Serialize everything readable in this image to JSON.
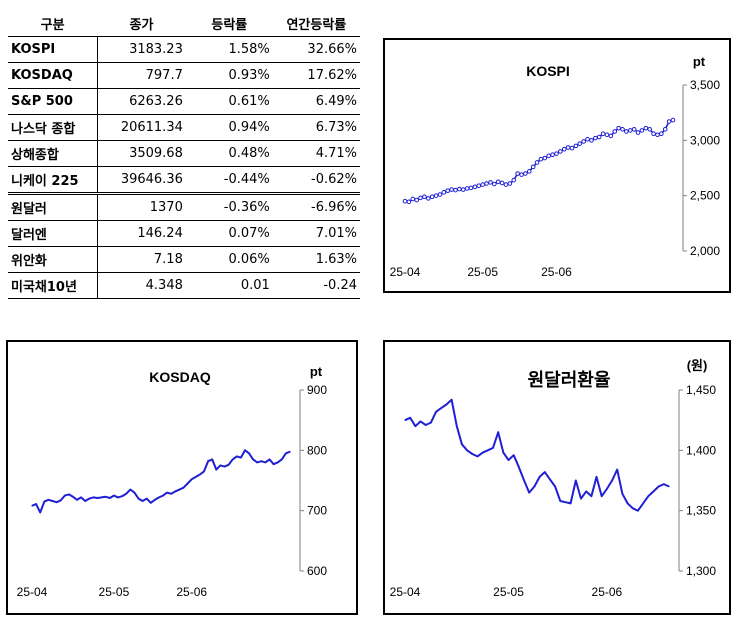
{
  "table": {
    "headers": [
      "구분",
      "종가",
      "등락률",
      "연간등락률"
    ],
    "rows": [
      {
        "name": "KOSPI",
        "close": "3183.23",
        "change": "1.58%",
        "ytd": "32.66%"
      },
      {
        "name": "KOSDAQ",
        "close": "797.7",
        "change": "0.93%",
        "ytd": "17.62%"
      },
      {
        "name": "S&P 500",
        "close": "6263.26",
        "change": "0.61%",
        "ytd": "6.49%"
      },
      {
        "name": "나스닥 종합",
        "close": "20611.34",
        "change": "0.94%",
        "ytd": "6.73%"
      },
      {
        "name": "상해종합",
        "close": "3509.68",
        "change": "0.48%",
        "ytd": "4.71%"
      },
      {
        "name": "니케이 225",
        "close": "39646.36",
        "change": "-0.44%",
        "ytd": "-0.62%"
      },
      {
        "name": "원달러",
        "close": "1370",
        "change": "-0.36%",
        "ytd": "-6.96%"
      },
      {
        "name": "달러엔",
        "close": "146.24",
        "change": "0.07%",
        "ytd": "7.01%"
      },
      {
        "name": "위안화",
        "close": "7.18",
        "change": "0.06%",
        "ytd": "1.63%"
      },
      {
        "name": "미국채10년",
        "close": "4.348",
        "change": "0.01",
        "ytd": "-0.24"
      }
    ]
  },
  "colors": {
    "line": "#1f1fd6",
    "marker_fill": "#ffffff",
    "axis": "#808080"
  },
  "chart_data": [
    {
      "id": "kospi",
      "type": "line",
      "title": "KOSPI",
      "unit": "pt",
      "markers": true,
      "ylim": [
        2000,
        3500
      ],
      "yticks": [
        2000,
        2500,
        3000,
        3500
      ],
      "ytick_labels": [
        "2,000",
        "2,500",
        "3,000",
        "3,500"
      ],
      "xticks": [
        "25-04",
        "25-05",
        "25-06"
      ],
      "xtick_index": [
        0,
        20,
        39
      ],
      "values": [
        2450,
        2445,
        2470,
        2460,
        2480,
        2490,
        2475,
        2490,
        2500,
        2510,
        2530,
        2545,
        2555,
        2550,
        2560,
        2555,
        2565,
        2570,
        2580,
        2590,
        2600,
        2610,
        2620,
        2605,
        2625,
        2615,
        2600,
        2610,
        2640,
        2700,
        2690,
        2700,
        2720,
        2760,
        2800,
        2830,
        2840,
        2860,
        2870,
        2880,
        2900,
        2920,
        2935,
        2930,
        2950,
        2970,
        2990,
        3010,
        3000,
        3020,
        3030,
        3060,
        3050,
        3040,
        3080,
        3110,
        3100,
        3080,
        3090,
        3100,
        3070,
        3090,
        3110,
        3100,
        3060,
        3050,
        3060,
        3100,
        3170,
        3183
      ]
    },
    {
      "id": "kosdaq",
      "type": "line",
      "title": "KOSDAQ",
      "unit": "pt",
      "markers": false,
      "ylim": [
        600,
        900
      ],
      "yticks": [
        600,
        700,
        800,
        900
      ],
      "ytick_labels": [
        "600",
        "700",
        "800",
        "900"
      ],
      "xticks": [
        "25-04",
        "25-05",
        "25-06"
      ],
      "xtick_index": [
        0,
        20,
        39
      ],
      "values": [
        708,
        711,
        697,
        715,
        718,
        716,
        714,
        717,
        725,
        727,
        723,
        718,
        722,
        716,
        720,
        722,
        721,
        722,
        723,
        721,
        725,
        722,
        724,
        728,
        735,
        730,
        720,
        716,
        720,
        713,
        718,
        722,
        725,
        730,
        728,
        732,
        735,
        738,
        745,
        752,
        756,
        760,
        765,
        782,
        785,
        768,
        775,
        773,
        776,
        785,
        790,
        788,
        800,
        795,
        785,
        780,
        782,
        780,
        785,
        777,
        780,
        785,
        795,
        797.7
      ]
    },
    {
      "id": "usdkrw",
      "type": "line",
      "title": "원달러환율",
      "unit": "(원)",
      "markers": false,
      "ylim": [
        1300,
        1450
      ],
      "yticks": [
        1300,
        1350,
        1400,
        1450
      ],
      "ytick_labels": [
        "1,300",
        "1,350",
        "1,400",
        "1,450"
      ],
      "xticks": [
        "25-04",
        "25-05",
        "25-06"
      ],
      "xtick_index": [
        0,
        20,
        39
      ],
      "values": [
        1425,
        1427,
        1420,
        1424,
        1421,
        1423,
        1432,
        1435,
        1438,
        1442,
        1420,
        1405,
        1400,
        1397,
        1395,
        1398,
        1400,
        1402,
        1415,
        1398,
        1392,
        1396,
        1386,
        1375,
        1365,
        1370,
        1378,
        1382,
        1376,
        1370,
        1358,
        1357,
        1356,
        1375,
        1360,
        1366,
        1362,
        1378,
        1362,
        1368,
        1375,
        1384,
        1364,
        1356,
        1352,
        1350,
        1356,
        1362,
        1366,
        1370,
        1372,
        1370
      ]
    }
  ]
}
